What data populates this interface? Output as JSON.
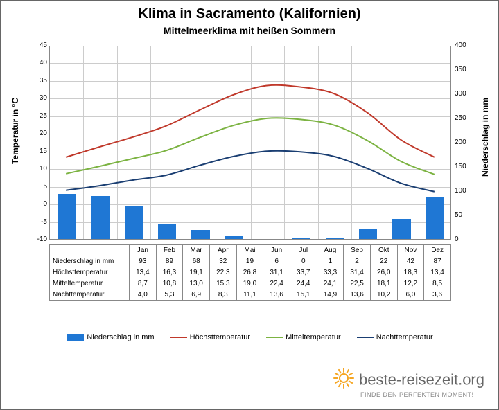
{
  "title": "Klima in Sacramento (Kalifornien)",
  "subtitle": "Mittelmeerklima mit heißen Sommern",
  "months": [
    "Jan",
    "Feb",
    "Mar",
    "Apr",
    "Mai",
    "Jun",
    "Jul",
    "Aug",
    "Sep",
    "Okt",
    "Nov",
    "Dez"
  ],
  "axis_left": {
    "title": "Temperatur in °C",
    "min": -10,
    "max": 45,
    "step": 5,
    "fontsize": 12
  },
  "axis_right": {
    "title": "Niederschlag in mm",
    "min": 0,
    "max": 400,
    "step": 50,
    "fontsize": 12
  },
  "row_labels": {
    "precip": "Niederschlag in mm",
    "high": "Höchsttemperatur",
    "mean": "Mitteltemperatur",
    "low": "Nachttemperatur"
  },
  "series": {
    "precip": {
      "label": "Niederschlag in mm",
      "type": "bar",
      "color": "#1f77d4",
      "bar_width_frac": 0.55,
      "axis": "right",
      "values": [
        93,
        89,
        68,
        32,
        19,
        6,
        0,
        1,
        2,
        22,
        42,
        87
      ]
    },
    "high": {
      "label": "Höchsttemperatur",
      "type": "line",
      "color": "#c0392b",
      "line_width": 2,
      "axis": "left",
      "values": [
        13.4,
        16.3,
        19.1,
        22.3,
        26.8,
        31.1,
        33.7,
        33.3,
        31.4,
        26.0,
        18.3,
        13.4
      ],
      "display": [
        "13,4",
        "16,3",
        "19,1",
        "22,3",
        "26,8",
        "31,1",
        "33,7",
        "33,3",
        "31,4",
        "26,0",
        "18,3",
        "13,4"
      ]
    },
    "mean": {
      "label": "Mitteltemperatur",
      "type": "line",
      "color": "#7cb342",
      "line_width": 2,
      "axis": "left",
      "values": [
        8.7,
        10.8,
        13.0,
        15.3,
        19.0,
        22.4,
        24.4,
        24.1,
        22.5,
        18.1,
        12.2,
        8.5
      ],
      "display": [
        "8,7",
        "10,8",
        "13,0",
        "15,3",
        "19,0",
        "22,4",
        "24,4",
        "24,1",
        "22,5",
        "18,1",
        "12,2",
        "8,5"
      ]
    },
    "low": {
      "label": "Nachttemperatur",
      "type": "line",
      "color": "#1a3e72",
      "line_width": 2,
      "axis": "left",
      "values": [
        4.0,
        5.3,
        6.9,
        8.3,
        11.1,
        13.6,
        15.1,
        14.9,
        13.6,
        10.2,
        6.0,
        3.6
      ],
      "display": [
        "4,0",
        "5,3",
        "6,9",
        "8,3",
        "11,1",
        "13,6",
        "15,1",
        "14,9",
        "13,6",
        "10,2",
        "6,0",
        "3,6"
      ]
    }
  },
  "grid_color": "#cccccc",
  "background_color": "#ffffff",
  "logo": {
    "name": "beste-reisezeit.org",
    "tagline": "FINDE DEN PERFEKTEN MOMENT!",
    "sun_color": "#f5a623"
  }
}
